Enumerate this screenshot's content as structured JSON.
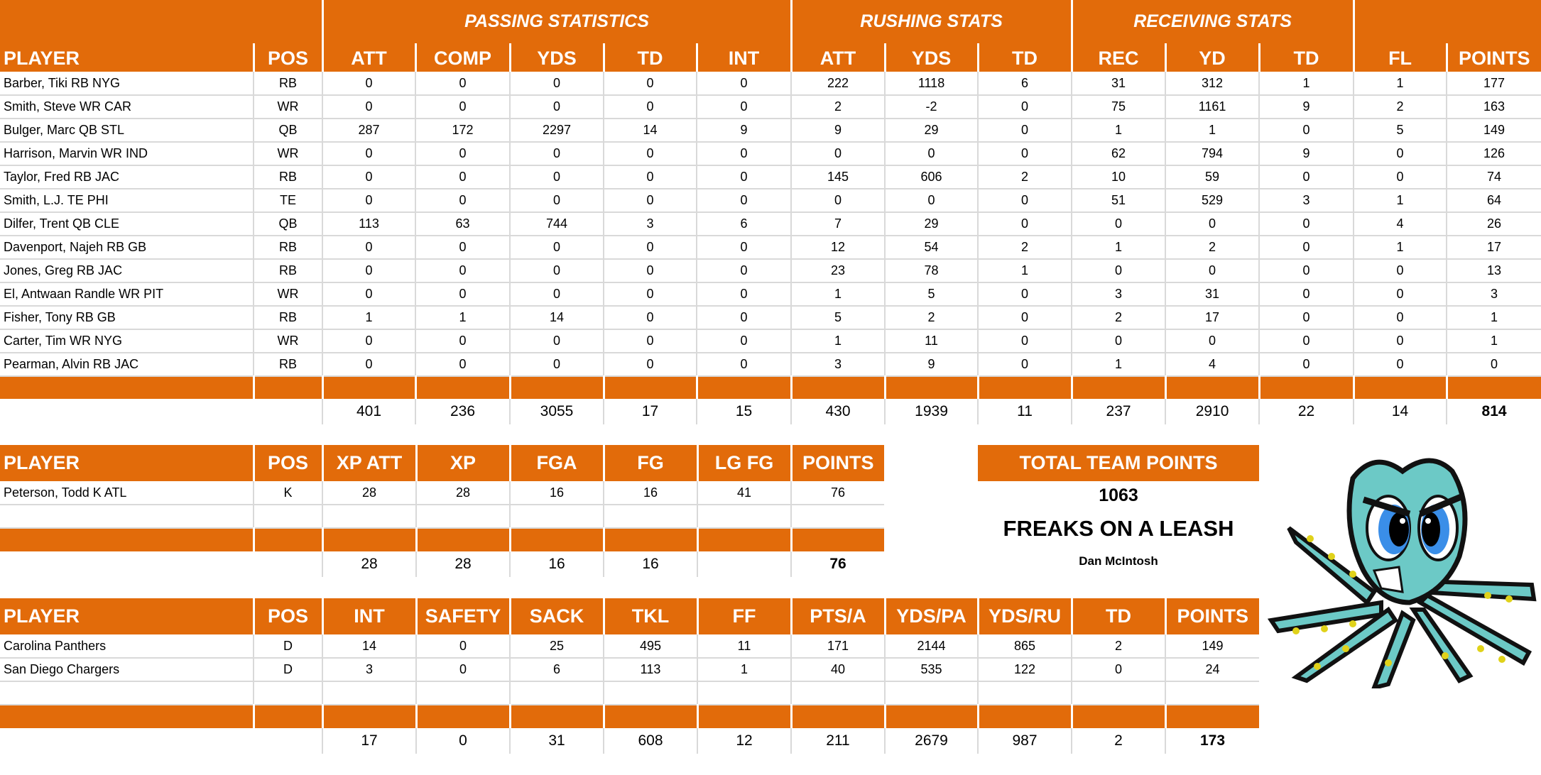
{
  "colors": {
    "header": "#E26B0A",
    "grid": "#d9d9d9",
    "octopus": "#6cc9c6"
  },
  "offense": {
    "groups": [
      "PASSING STATISTICS",
      "RUSHING STATS",
      "RECEIVING STATS"
    ],
    "columns": [
      "PLAYER",
      "POS",
      "ATT",
      "COMP",
      "YDS",
      "TD",
      "INT",
      "ATT",
      "YDS",
      "TD",
      "REC",
      "YD",
      "TD",
      "FL",
      "POINTS"
    ],
    "rows": [
      [
        "Barber, Tiki RB NYG",
        "RB",
        "0",
        "0",
        "0",
        "0",
        "0",
        "222",
        "1118",
        "6",
        "31",
        "312",
        "1",
        "1",
        "177"
      ],
      [
        "Smith, Steve WR CAR",
        "WR",
        "0",
        "0",
        "0",
        "0",
        "0",
        "2",
        "-2",
        "0",
        "75",
        "1161",
        "9",
        "2",
        "163"
      ],
      [
        "Bulger, Marc QB STL",
        "QB",
        "287",
        "172",
        "2297",
        "14",
        "9",
        "9",
        "29",
        "0",
        "1",
        "1",
        "0",
        "5",
        "149"
      ],
      [
        "Harrison, Marvin WR IND",
        "WR",
        "0",
        "0",
        "0",
        "0",
        "0",
        "0",
        "0",
        "0",
        "62",
        "794",
        "9",
        "0",
        "126"
      ],
      [
        "Taylor, Fred RB JAC",
        "RB",
        "0",
        "0",
        "0",
        "0",
        "0",
        "145",
        "606",
        "2",
        "10",
        "59",
        "0",
        "0",
        "74"
      ],
      [
        "Smith, L.J. TE PHI",
        "TE",
        "0",
        "0",
        "0",
        "0",
        "0",
        "0",
        "0",
        "0",
        "51",
        "529",
        "3",
        "1",
        "64"
      ],
      [
        "Dilfer, Trent QB CLE",
        "QB",
        "113",
        "63",
        "744",
        "3",
        "6",
        "7",
        "29",
        "0",
        "0",
        "0",
        "0",
        "4",
        "26"
      ],
      [
        "Davenport, Najeh RB GB",
        "RB",
        "0",
        "0",
        "0",
        "0",
        "0",
        "12",
        "54",
        "2",
        "1",
        "2",
        "0",
        "1",
        "17"
      ],
      [
        "Jones, Greg RB JAC",
        "RB",
        "0",
        "0",
        "0",
        "0",
        "0",
        "23",
        "78",
        "1",
        "0",
        "0",
        "0",
        "0",
        "13"
      ],
      [
        "El, Antwaan Randle WR PIT",
        "WR",
        "0",
        "0",
        "0",
        "0",
        "0",
        "1",
        "5",
        "0",
        "3",
        "31",
        "0",
        "0",
        "3"
      ],
      [
        "Fisher, Tony RB GB",
        "RB",
        "1",
        "1",
        "14",
        "0",
        "0",
        "5",
        "2",
        "0",
        "2",
        "17",
        "0",
        "0",
        "1"
      ],
      [
        "Carter, Tim WR NYG",
        "WR",
        "0",
        "0",
        "0",
        "0",
        "0",
        "1",
        "11",
        "0",
        "0",
        "0",
        "0",
        "0",
        "1"
      ],
      [
        "Pearman, Alvin RB JAC",
        "RB",
        "0",
        "0",
        "0",
        "0",
        "0",
        "3",
        "9",
        "0",
        "1",
        "4",
        "0",
        "0",
        "0"
      ]
    ],
    "blank_rows": 0,
    "totals": [
      "",
      "",
      "401",
      "236",
      "3055",
      "17",
      "15",
      "430",
      "1939",
      "11",
      "237",
      "2910",
      "22",
      "14",
      "814"
    ]
  },
  "kicker": {
    "columns": [
      "PLAYER",
      "POS",
      "XP ATT",
      "XP",
      "FGA",
      "FG",
      "LG FG",
      "POINTS"
    ],
    "rows": [
      [
        "Peterson, Todd K ATL",
        "K",
        "28",
        "28",
        "16",
        "16",
        "41",
        "76"
      ]
    ],
    "blank_rows": 1,
    "totals": [
      "",
      "",
      "28",
      "28",
      "16",
      "16",
      "",
      "76"
    ]
  },
  "defense": {
    "columns": [
      "PLAYER",
      "POS",
      "INT",
      "SAFETY",
      "SACK",
      "TKL",
      "FF",
      "PTS/A",
      "YDS/PA",
      "YDS/RU",
      "TD",
      "POINTS"
    ],
    "rows": [
      [
        "Carolina Panthers",
        "D",
        "14",
        "0",
        "25",
        "495",
        "11",
        "171",
        "2144",
        "865",
        "2",
        "149"
      ],
      [
        "San Diego Chargers",
        "D",
        "3",
        "0",
        "6",
        "113",
        "1",
        "40",
        "535",
        "122",
        "0",
        "24"
      ]
    ],
    "blank_rows": 1,
    "totals": [
      "",
      "",
      "17",
      "0",
      "31",
      "608",
      "12",
      "211",
      "2679",
      "987",
      "2",
      "173"
    ]
  },
  "team": {
    "header": "TOTAL TEAM POINTS",
    "points": "1063",
    "name": "FREAKS ON A LEASH",
    "owner": "Dan McIntosh",
    "logo_icon": "angry-octopus-mascot"
  }
}
